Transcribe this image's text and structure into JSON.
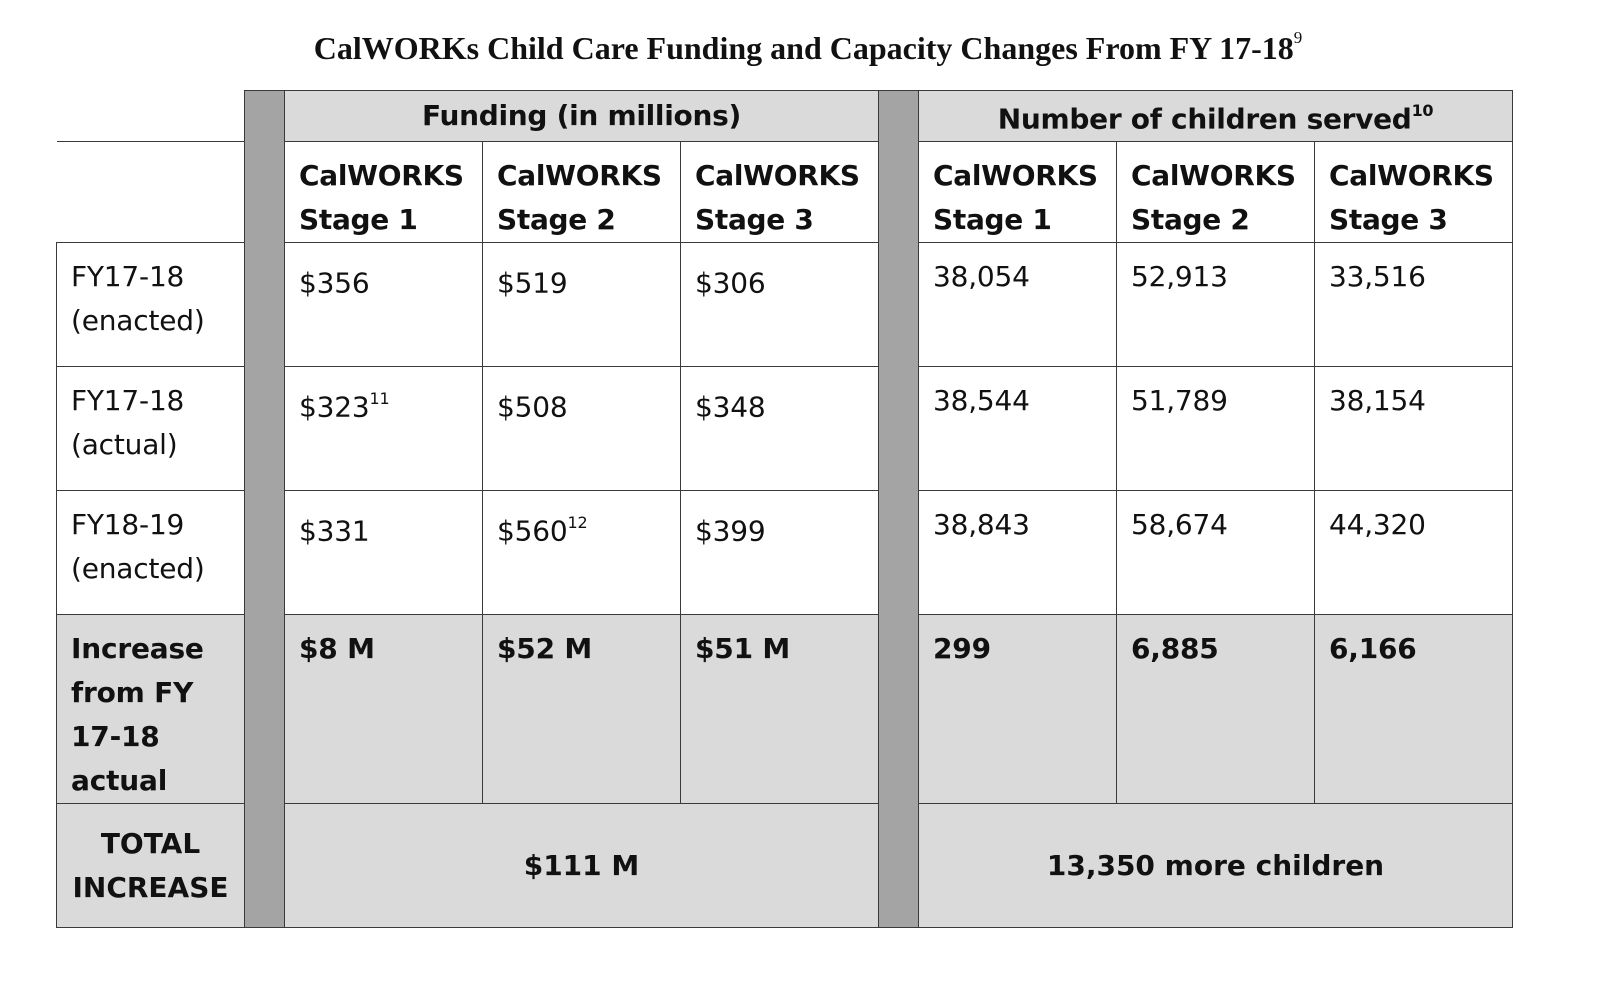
{
  "title": {
    "text": "CalWORKs Child Care Funding and Capacity Changes From FY 17-18",
    "footnote": "9"
  },
  "table": {
    "group_headers": {
      "funding": "Funding (in millions)",
      "children": "Number of children served",
      "children_footnote": "10"
    },
    "column_headers": {
      "funding": [
        {
          "line1": "CalWORKS",
          "line2": "Stage 1"
        },
        {
          "line1": "CalWORKS",
          "line2": "Stage 2"
        },
        {
          "line1": "CalWORKS",
          "line2": "Stage 3"
        }
      ],
      "children": [
        {
          "line1": "CalWORKS",
          "line2": "Stage 1"
        },
        {
          "line1": "CalWORKS",
          "line2": "Stage 2"
        },
        {
          "line1": "CalWORKS",
          "line2": "Stage 3"
        }
      ]
    },
    "rows": [
      {
        "label_line1": "FY17-18",
        "label_line2": "(enacted)",
        "funding": [
          {
            "value": "$356",
            "footnote": ""
          },
          {
            "value": "$519",
            "footnote": ""
          },
          {
            "value": "$306",
            "footnote": ""
          }
        ],
        "children": [
          "38,054",
          "52,913",
          "33,516"
        ]
      },
      {
        "label_line1": "FY17-18",
        "label_line2": "(actual)",
        "funding": [
          {
            "value": "$323",
            "footnote": "11"
          },
          {
            "value": "$508",
            "footnote": ""
          },
          {
            "value": "$348",
            "footnote": ""
          }
        ],
        "children": [
          "38,544",
          "51,789",
          "38,154"
        ]
      },
      {
        "label_line1": "FY18-19",
        "label_line2": "(enacted)",
        "funding": [
          {
            "value": "$331",
            "footnote": ""
          },
          {
            "value": "$560",
            "footnote": "12"
          },
          {
            "value": "$399",
            "footnote": ""
          }
        ],
        "children": [
          "38,843",
          "58,674",
          "44,320"
        ]
      }
    ],
    "increase": {
      "label_lines": [
        "Increase",
        "from FY",
        "17-18",
        "actual"
      ],
      "funding": [
        "$8 M",
        "$52 M",
        "$51 M"
      ],
      "children": [
        "299",
        "6,885",
        "6,166"
      ]
    },
    "total": {
      "label_line1": "TOTAL",
      "label_line2": "INCREASE",
      "funding": "$111 M",
      "children": "13,350 more children"
    }
  }
}
